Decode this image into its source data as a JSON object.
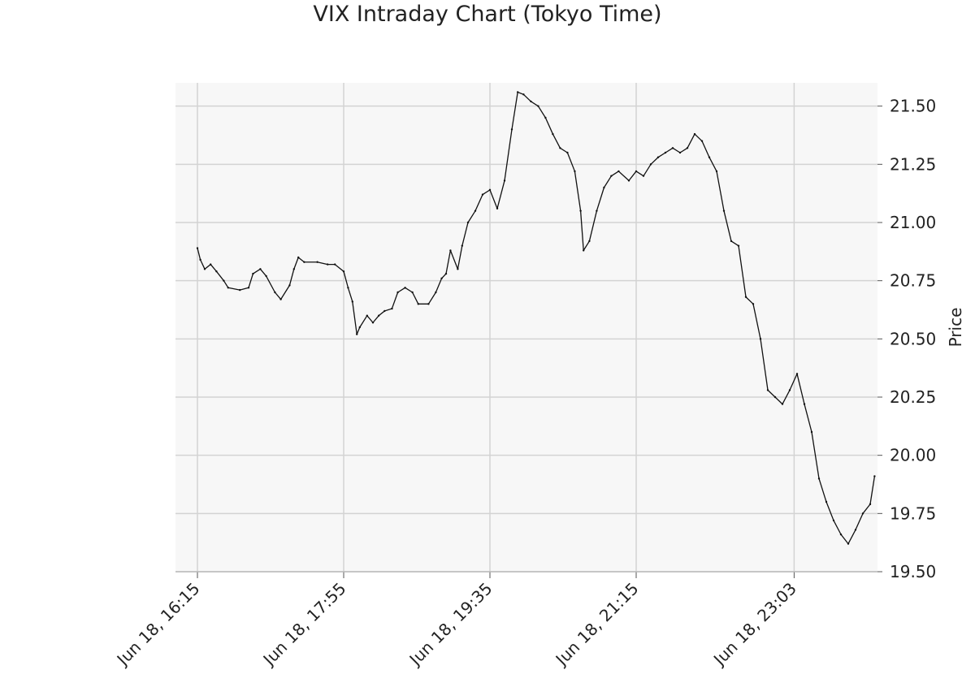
{
  "chart_data": {
    "type": "line",
    "title": "VIX Intraday Chart (Tokyo Time)",
    "xlabel": "",
    "ylabel": "Price",
    "time_range": [
      "Jun 18, 16:00",
      "Jun 19, 00:00"
    ],
    "ylim": [
      19.5,
      21.6
    ],
    "y_ticks": [
      19.5,
      19.75,
      20.0,
      20.25,
      20.5,
      20.75,
      21.0,
      21.25,
      21.5
    ],
    "y_tick_labels": [
      "19.50",
      "19.75",
      "20.00",
      "20.25",
      "20.50",
      "20.75",
      "21.00",
      "21.25",
      "21.50"
    ],
    "x_ticks": [
      {
        "time": "16:15",
        "label": "Jun 18, 16:15"
      },
      {
        "time": "17:55",
        "label": "Jun 18, 17:55"
      },
      {
        "time": "19:35",
        "label": "Jun 18, 19:35"
      },
      {
        "time": "21:15",
        "label": "Jun 18, 21:15"
      },
      {
        "time": "23:03",
        "label": "Jun 18, 23:03"
      }
    ],
    "y_axis_position": "right",
    "grid": true,
    "colors": {
      "line": "#111111",
      "plot_background": "#f7f7f7",
      "grid": "#d3d3d3"
    },
    "series": [
      {
        "points": [
          [
            "16:15",
            20.89
          ],
          [
            "16:17",
            20.84
          ],
          [
            "16:20",
            20.8
          ],
          [
            "16:24",
            20.82
          ],
          [
            "16:28",
            20.79
          ],
          [
            "16:33",
            20.75
          ],
          [
            "16:36",
            20.72
          ],
          [
            "16:44",
            20.71
          ],
          [
            "16:50",
            20.72
          ],
          [
            "16:53",
            20.78
          ],
          [
            "16:58",
            20.8
          ],
          [
            "17:02",
            20.77
          ],
          [
            "17:08",
            20.7
          ],
          [
            "17:12",
            20.67
          ],
          [
            "17:18",
            20.73
          ],
          [
            "17:21",
            20.8
          ],
          [
            "17:24",
            20.85
          ],
          [
            "17:28",
            20.83
          ],
          [
            "17:37",
            20.83
          ],
          [
            "17:44",
            20.82
          ],
          [
            "17:49",
            20.82
          ],
          [
            "17:55",
            20.79
          ],
          [
            "17:58",
            20.72
          ],
          [
            "18:01",
            20.66
          ],
          [
            "18:04",
            20.52
          ],
          [
            "18:06",
            20.55
          ],
          [
            "18:11",
            20.6
          ],
          [
            "18:15",
            20.57
          ],
          [
            "18:19",
            20.6
          ],
          [
            "18:23",
            20.62
          ],
          [
            "18:28",
            20.63
          ],
          [
            "18:32",
            20.7
          ],
          [
            "18:37",
            20.72
          ],
          [
            "18:42",
            20.7
          ],
          [
            "18:46",
            20.65
          ],
          [
            "18:53",
            20.65
          ],
          [
            "18:58",
            20.7
          ],
          [
            "19:02",
            20.76
          ],
          [
            "19:05",
            20.78
          ],
          [
            "19:08",
            20.88
          ],
          [
            "19:13",
            20.8
          ],
          [
            "19:16",
            20.9
          ],
          [
            "19:20",
            21.0
          ],
          [
            "19:25",
            21.05
          ],
          [
            "19:30",
            21.12
          ],
          [
            "19:35",
            21.14
          ],
          [
            "19:40",
            21.06
          ],
          [
            "19:45",
            21.18
          ],
          [
            "19:50",
            21.4
          ],
          [
            "19:54",
            21.56
          ],
          [
            "19:58",
            21.55
          ],
          [
            "20:03",
            21.52
          ],
          [
            "20:08",
            21.5
          ],
          [
            "20:13",
            21.45
          ],
          [
            "20:18",
            21.38
          ],
          [
            "20:23",
            21.32
          ],
          [
            "20:28",
            21.3
          ],
          [
            "20:33",
            21.22
          ],
          [
            "20:37",
            21.05
          ],
          [
            "20:39",
            20.88
          ],
          [
            "20:43",
            20.92
          ],
          [
            "20:48",
            21.05
          ],
          [
            "20:53",
            21.15
          ],
          [
            "20:58",
            21.2
          ],
          [
            "21:03",
            21.22
          ],
          [
            "21:10",
            21.18
          ],
          [
            "21:15",
            21.22
          ],
          [
            "21:20",
            21.2
          ],
          [
            "21:25",
            21.25
          ],
          [
            "21:30",
            21.28
          ],
          [
            "21:35",
            21.3
          ],
          [
            "21:40",
            21.32
          ],
          [
            "21:45",
            21.3
          ],
          [
            "21:50",
            21.32
          ],
          [
            "21:55",
            21.38
          ],
          [
            "22:00",
            21.35
          ],
          [
            "22:05",
            21.28
          ],
          [
            "22:10",
            21.22
          ],
          [
            "22:15",
            21.05
          ],
          [
            "22:20",
            20.92
          ],
          [
            "22:25",
            20.9
          ],
          [
            "22:30",
            20.68
          ],
          [
            "22:35",
            20.65
          ],
          [
            "22:40",
            20.5
          ],
          [
            "22:45",
            20.28
          ],
          [
            "22:50",
            20.25
          ],
          [
            "22:55",
            20.22
          ],
          [
            "23:00",
            20.28
          ],
          [
            "23:05",
            20.35
          ],
          [
            "23:10",
            20.22
          ],
          [
            "23:15",
            20.1
          ],
          [
            "23:20",
            19.9
          ],
          [
            "23:25",
            19.8
          ],
          [
            "23:30",
            19.72
          ],
          [
            "23:35",
            19.66
          ],
          [
            "23:40",
            19.62
          ],
          [
            "23:45",
            19.68
          ],
          [
            "23:50",
            19.75
          ],
          [
            "23:55",
            19.79
          ],
          [
            "23:58",
            19.91
          ]
        ]
      }
    ]
  }
}
